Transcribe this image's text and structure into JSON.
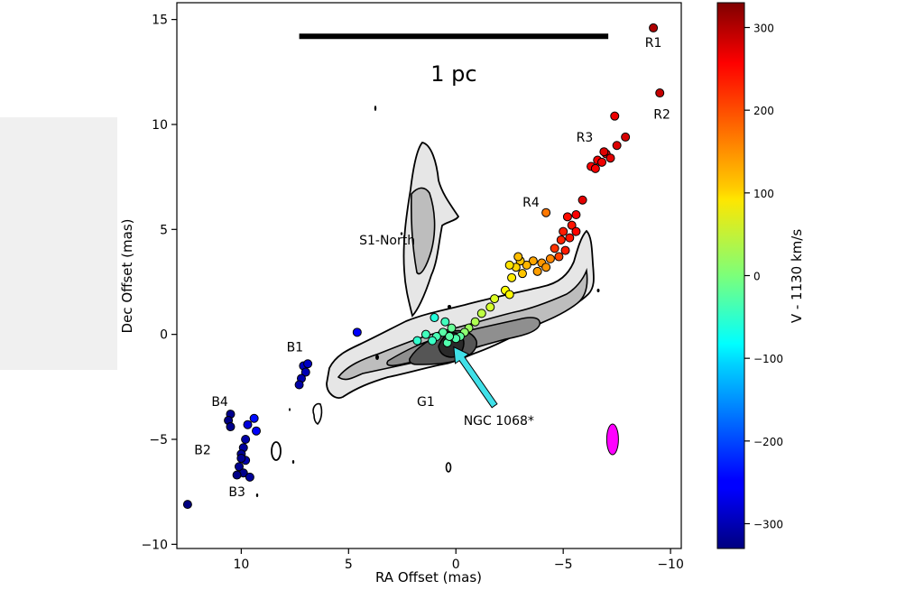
{
  "chart_data": {
    "type": "scatter",
    "title": "",
    "xlabel": "RA Offset (mas)",
    "ylabel": "Dec Offset (mas)",
    "xlim": [
      13,
      -10.5
    ],
    "ylim": [
      -10.2,
      15.8
    ],
    "x_ticks": [
      10,
      5,
      0,
      -5,
      -10
    ],
    "x_tick_labels": [
      "10",
      "5",
      "0",
      "−5",
      "−10"
    ],
    "y_ticks": [
      -10,
      -5,
      0,
      5,
      10,
      15
    ],
    "y_tick_labels": [
      "−10",
      "−5",
      "0",
      "5",
      "10",
      "15"
    ],
    "grid": false,
    "colorbar": {
      "label": "V - 1130 km/s",
      "range": [
        -330,
        330
      ],
      "ticks": [
        300,
        200,
        100,
        0,
        -100,
        -200,
        -300
      ],
      "tick_labels": [
        "300",
        "200",
        "100",
        "0",
        "−100",
        "−200",
        "−300"
      ],
      "colormap": "jet"
    },
    "scale_bar": {
      "label": "1 pc",
      "x_from": 7.3,
      "x_to": -7.1,
      "y": 14.2
    },
    "beam": {
      "x": -7.3,
      "y": -5.0,
      "color": "#ff00ff"
    },
    "annotations": [
      {
        "text": "R1",
        "x": -9.2,
        "y": 13.9
      },
      {
        "text": "R2",
        "x": -9.6,
        "y": 10.5
      },
      {
        "text": "R3",
        "x": -6.0,
        "y": 9.4
      },
      {
        "text": "R4",
        "x": -3.5,
        "y": 6.3
      },
      {
        "text": "S1-North",
        "x": 3.2,
        "y": 4.5
      },
      {
        "text": "B1",
        "x": 7.5,
        "y": -0.6
      },
      {
        "text": "G1",
        "x": 1.4,
        "y": -3.2
      },
      {
        "text": "NGC 1068*",
        "x": -2.0,
        "y": -4.1
      },
      {
        "text": "B4",
        "x": 11.0,
        "y": -3.2
      },
      {
        "text": "B2",
        "x": 11.8,
        "y": -5.5
      },
      {
        "text": "B3",
        "x": 10.2,
        "y": -7.5
      }
    ],
    "arrow": {
      "label": "NGC 1068*",
      "from": [
        -1.8,
        -3.4
      ],
      "to": [
        0.1,
        -0.6
      ],
      "color": "#40e0e8"
    },
    "series": [
      {
        "points": [
          {
            "x": -9.2,
            "y": 14.6,
            "v": 300
          },
          {
            "x": -9.5,
            "y": 11.5,
            "v": 285
          },
          {
            "x": -7.4,
            "y": 10.4,
            "v": 260
          },
          {
            "x": -7.9,
            "y": 9.4,
            "v": 275
          },
          {
            "x": -7.5,
            "y": 9.0,
            "v": 270
          },
          {
            "x": -7.0,
            "y": 8.6,
            "v": 262
          },
          {
            "x": -6.6,
            "y": 8.3,
            "v": 255
          },
          {
            "x": -6.3,
            "y": 8.0,
            "v": 250
          },
          {
            "x": -6.8,
            "y": 8.2,
            "v": 258
          },
          {
            "x": -7.2,
            "y": 8.4,
            "v": 265
          },
          {
            "x": -6.5,
            "y": 7.9,
            "v": 252
          },
          {
            "x": -6.9,
            "y": 8.7,
            "v": 268
          },
          {
            "x": -5.9,
            "y": 6.4,
            "v": 265
          },
          {
            "x": -5.6,
            "y": 5.7,
            "v": 250
          },
          {
            "x": -5.2,
            "y": 5.6,
            "v": 240
          },
          {
            "x": -5.4,
            "y": 5.2,
            "v": 235
          },
          {
            "x": -5.0,
            "y": 4.9,
            "v": 230
          },
          {
            "x": -4.9,
            "y": 4.5,
            "v": 225
          },
          {
            "x": -5.3,
            "y": 4.6,
            "v": 235
          },
          {
            "x": -5.6,
            "y": 4.9,
            "v": 245
          },
          {
            "x": -4.6,
            "y": 4.1,
            "v": 215
          },
          {
            "x": -4.8,
            "y": 3.7,
            "v": 205
          },
          {
            "x": -5.1,
            "y": 4.0,
            "v": 230
          },
          {
            "x": -4.2,
            "y": 5.8,
            "v": 170
          },
          {
            "x": -4.4,
            "y": 3.6,
            "v": 160
          },
          {
            "x": -4.0,
            "y": 3.4,
            "v": 150
          },
          {
            "x": -3.6,
            "y": 3.5,
            "v": 140
          },
          {
            "x": -4.2,
            "y": 3.2,
            "v": 150
          },
          {
            "x": -3.8,
            "y": 3.0,
            "v": 145
          },
          {
            "x": -3.3,
            "y": 3.3,
            "v": 130
          },
          {
            "x": -3.0,
            "y": 3.5,
            "v": 120
          },
          {
            "x": -2.8,
            "y": 3.2,
            "v": 110
          },
          {
            "x": -2.5,
            "y": 3.3,
            "v": 100
          },
          {
            "x": -2.9,
            "y": 3.7,
            "v": 125
          },
          {
            "x": -3.1,
            "y": 2.9,
            "v": 120
          },
          {
            "x": -2.6,
            "y": 2.7,
            "v": 95
          },
          {
            "x": -2.3,
            "y": 2.1,
            "v": 80
          },
          {
            "x": -2.5,
            "y": 1.9,
            "v": 85
          },
          {
            "x": -1.8,
            "y": 1.7,
            "v": 60
          },
          {
            "x": -1.6,
            "y": 1.3,
            "v": 55
          },
          {
            "x": -1.2,
            "y": 1.0,
            "v": 40
          },
          {
            "x": -0.9,
            "y": 0.6,
            "v": 30
          },
          {
            "x": -0.6,
            "y": 0.3,
            "v": 20
          },
          {
            "x": -0.4,
            "y": 0.1,
            "v": 10
          },
          {
            "x": -0.2,
            "y": -0.1,
            "v": -20
          },
          {
            "x": 0.0,
            "y": -0.2,
            "v": -30
          },
          {
            "x": 0.2,
            "y": 0.3,
            "v": -15
          },
          {
            "x": 0.6,
            "y": 0.1,
            "v": -25
          },
          {
            "x": 0.9,
            "y": -0.1,
            "v": -35
          },
          {
            "x": 1.1,
            "y": -0.3,
            "v": -45
          },
          {
            "x": 1.4,
            "y": 0.0,
            "v": -40
          },
          {
            "x": 1.8,
            "y": -0.3,
            "v": -50
          },
          {
            "x": 0.4,
            "y": -0.4,
            "v": -30
          },
          {
            "x": 1.0,
            "y": 0.8,
            "v": -60
          },
          {
            "x": 0.5,
            "y": 0.6,
            "v": -40
          },
          {
            "x": 0.3,
            "y": -0.1,
            "v": -25
          },
          {
            "x": 4.6,
            "y": 0.1,
            "v": -250
          },
          {
            "x": 7.1,
            "y": -1.5,
            "v": -290
          },
          {
            "x": 7.0,
            "y": -1.8,
            "v": -295
          },
          {
            "x": 7.2,
            "y": -2.1,
            "v": -300
          },
          {
            "x": 7.3,
            "y": -2.4,
            "v": -305
          },
          {
            "x": 6.9,
            "y": -1.4,
            "v": -285
          },
          {
            "x": 10.5,
            "y": -3.8,
            "v": -320
          },
          {
            "x": 10.6,
            "y": -4.1,
            "v": -325
          },
          {
            "x": 10.5,
            "y": -4.4,
            "v": -322
          },
          {
            "x": 9.7,
            "y": -4.3,
            "v": -270
          },
          {
            "x": 9.4,
            "y": -4.0,
            "v": -240
          },
          {
            "x": 9.3,
            "y": -4.6,
            "v": -250
          },
          {
            "x": 9.8,
            "y": -5.0,
            "v": -305
          },
          {
            "x": 9.9,
            "y": -5.4,
            "v": -310
          },
          {
            "x": 10.0,
            "y": -5.7,
            "v": -315
          },
          {
            "x": 9.8,
            "y": -6.0,
            "v": -300
          },
          {
            "x": 10.1,
            "y": -6.3,
            "v": -318
          },
          {
            "x": 9.9,
            "y": -6.6,
            "v": -322
          },
          {
            "x": 10.2,
            "y": -6.7,
            "v": -325
          },
          {
            "x": 9.6,
            "y": -6.8,
            "v": -312
          },
          {
            "x": 10.0,
            "y": -5.9,
            "v": -320
          },
          {
            "x": 12.5,
            "y": -8.1,
            "v": -330
          }
        ]
      }
    ]
  }
}
